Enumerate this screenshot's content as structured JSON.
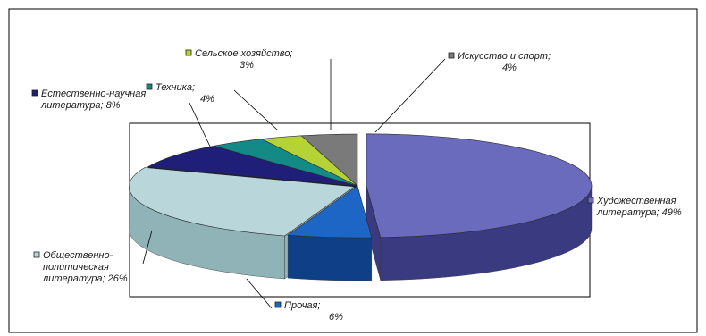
{
  "chart_data": {
    "type": "pie",
    "three_d": true,
    "legend": "none",
    "slices": [
      {
        "key": "fiction",
        "line1": "Художественная",
        "line2": "литература;",
        "value_label": "49%",
        "value": 49,
        "color": "#6b6bbd",
        "side": "#3a3a80"
      },
      {
        "key": "other",
        "line1": "Прочая;",
        "line2": "",
        "value_label": "6%",
        "value": 6,
        "color": "#1e66c6",
        "side": "#0f3f86"
      },
      {
        "key": "social",
        "line1": "Общественно-",
        "line2": "политическая",
        "line3": "литература;",
        "value_label": "26%",
        "value": 26,
        "color": "#b9d7da",
        "side": "#8fb3b7"
      },
      {
        "key": "science",
        "line1": "Естественно-научная",
        "line2": "литература;",
        "value_label": "8%",
        "value": 8,
        "color": "#1f1f7a",
        "side": "#10104a"
      },
      {
        "key": "tech",
        "line1": "Техника;",
        "line2": "",
        "value_label": "4%",
        "value": 4,
        "color": "#138a86",
        "side": "#0b5a57"
      },
      {
        "key": "agri",
        "line1": "Сельское хозяйство;",
        "line2": "",
        "value_label": "3%",
        "value": 3,
        "color": "#b5d334",
        "side": "#7a9020"
      },
      {
        "key": "arts",
        "line1": "Искусство и спорт;",
        "line2": "",
        "value_label": "4%",
        "value": 4,
        "color": "#7a7a7a",
        "side": "#4b4b4b"
      }
    ]
  }
}
